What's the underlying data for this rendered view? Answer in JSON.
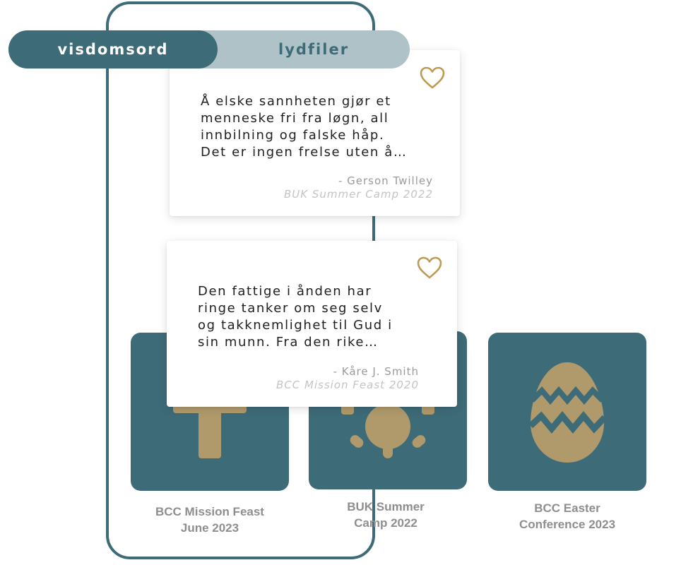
{
  "tabs": {
    "active_label": "visdomsord",
    "inactive_label": "lydfiler"
  },
  "quotes": [
    {
      "lines": [
        "Å elske sannheten gjør et",
        "menneske fri fra løgn, all",
        "innbilning og falske håp.",
        "Det er ingen frelse uten å…"
      ],
      "author": "- Gerson Twilley",
      "source": "BUK Summer Camp 2022",
      "icon": "heart-outline-icon"
    },
    {
      "lines": [
        "Den fattige i ånden har",
        "ringe tanker om seg selv",
        "og takknemlighet til Gud i",
        "sin munn. Fra den rike…"
      ],
      "author": "- Kåre J. Smith",
      "source": "BCC Mission Feast 2020",
      "icon": "heart-outline-icon"
    }
  ],
  "events": [
    {
      "label_lines": [
        "BCC Mission Feast",
        "June 2023"
      ],
      "icon": "cross-icon"
    },
    {
      "label_lines": [
        "BUK Summer",
        "Camp 2022"
      ],
      "icon": "sun-icon"
    },
    {
      "label_lines": [
        "BCC Easter",
        "Conference 2023"
      ],
      "icon": "easter-egg-icon"
    }
  ],
  "colors": {
    "teal": "#3e6b78",
    "teal_light": "#aec2c8",
    "gold": "#b09a6c",
    "heart_gold": "#bf9a55",
    "label_gray": "#8e8e8e"
  }
}
